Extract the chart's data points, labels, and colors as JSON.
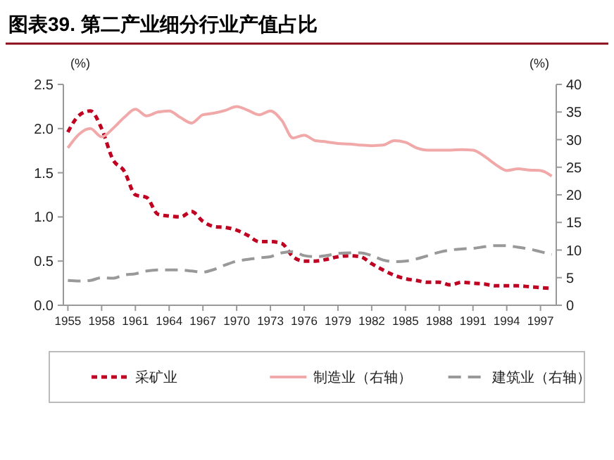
{
  "chart_data": {
    "type": "line",
    "title": "图表39. 第二产业细分行业产值占比",
    "ylabel": "(%)",
    "y2label": "(%)",
    "x": [
      1955,
      1956,
      1957,
      1958,
      1959,
      1960,
      1961,
      1962,
      1963,
      1964,
      1965,
      1966,
      1967,
      1968,
      1969,
      1970,
      1971,
      1972,
      1973,
      1974,
      1975,
      1976,
      1977,
      1978,
      1979,
      1980,
      1981,
      1982,
      1983,
      1984,
      1985,
      1986,
      1987,
      1988,
      1989,
      1990,
      1991,
      1992,
      1993,
      1994,
      1995,
      1996,
      1997,
      1998
    ],
    "xlim": [
      1954.6,
      1998.4
    ],
    "xticks": [
      1955,
      1958,
      1961,
      1964,
      1967,
      1970,
      1973,
      1976,
      1979,
      1982,
      1985,
      1988,
      1991,
      1994,
      1997
    ],
    "ylim": [
      0,
      2.5
    ],
    "yticks": [
      {
        "value": 0,
        "label": "0.0"
      },
      {
        "value": 0.5,
        "label": "0.5"
      },
      {
        "value": 1,
        "label": "1.0"
      },
      {
        "value": 1.5,
        "label": "1.5"
      },
      {
        "value": 2,
        "label": "2.0"
      },
      {
        "value": 2.5,
        "label": "2.5"
      }
    ],
    "y2lim": [
      0,
      40
    ],
    "y2ticks": [
      0,
      5,
      10,
      15,
      20,
      25,
      30,
      35,
      40
    ],
    "legend": "bottom",
    "grid": false,
    "marker": "none",
    "series": [
      {
        "name": "采矿业",
        "color": "#c00020",
        "line_style": "dotted",
        "values": [
          1.96,
          2.15,
          2.2,
          2.0,
          1.65,
          1.52,
          1.25,
          1.22,
          1.03,
          1.01,
          1.0,
          1.06,
          0.95,
          0.89,
          0.88,
          0.85,
          0.79,
          0.72,
          0.72,
          0.7,
          0.55,
          0.5,
          0.5,
          0.52,
          0.55,
          0.56,
          0.55,
          0.47,
          0.4,
          0.34,
          0.3,
          0.28,
          0.26,
          0.26,
          0.23,
          0.26,
          0.25,
          0.24,
          0.22,
          0.22,
          0.22,
          0.21,
          0.2,
          0.19
        ]
      },
      {
        "name": "制造业（右轴）",
        "color": "#f0a8a8",
        "line_style": "solid",
        "axis": "y2",
        "values": [
          28.5,
          31,
          32,
          30.5,
          32,
          34,
          35.5,
          34.3,
          35,
          35.2,
          34,
          33,
          34.5,
          34.8,
          35.3,
          36,
          35.3,
          34.5,
          35.2,
          33.5,
          30.3,
          30.8,
          29.8,
          29.6,
          29.3,
          29.2,
          29,
          28.9,
          29,
          29.8,
          29.5,
          28.5,
          28.1,
          28.1,
          28.1,
          28.2,
          28.1,
          27,
          25.5,
          24.4,
          24.7,
          24.5,
          24.4,
          23.4
        ]
      },
      {
        "name": "建筑业（右轴）",
        "color": "#999999",
        "line_style": "dashed",
        "axis": "y2",
        "values": [
          4.5,
          4.4,
          4.5,
          5.0,
          4.9,
          5.5,
          5.7,
          6.2,
          6.4,
          6.4,
          6.4,
          6.2,
          6.0,
          6.5,
          7.3,
          8.0,
          8.3,
          8.6,
          8.8,
          9.5,
          9.7,
          9.0,
          8.8,
          9.0,
          9.4,
          9.5,
          9.5,
          9.0,
          8.2,
          7.9,
          8.0,
          8.4,
          9.0,
          9.6,
          10.0,
          10.2,
          10.3,
          10.6,
          10.8,
          10.8,
          10.5,
          10.2,
          9.7,
          9.2
        ]
      }
    ]
  }
}
